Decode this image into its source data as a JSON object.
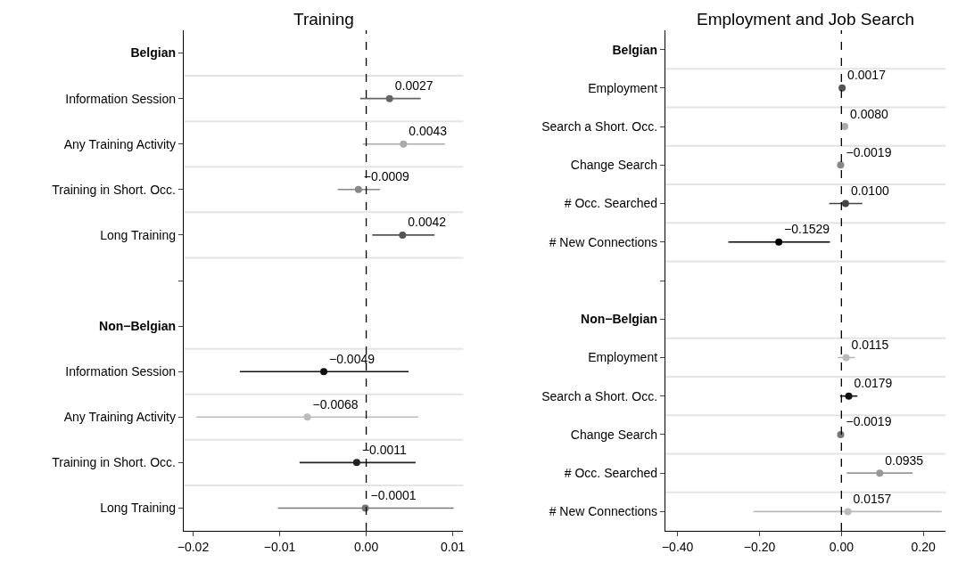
{
  "chart_data": [
    {
      "type": "scatter",
      "orientation": "horizontal",
      "title": "Training",
      "categories": [
        "Belgian",
        "Information Session",
        "Any Training Activity",
        "Training in Short. Occ.",
        "Long Training",
        null,
        "Non−Belgian",
        "Information Session",
        "Any Training Activity",
        "Training in Short. Occ.",
        "Long Training"
      ],
      "values": [
        null,
        0.0027,
        0.0043,
        -0.0009,
        0.0042,
        null,
        null,
        -0.0049,
        -0.0068,
        -0.0011,
        -0.0001
      ],
      "value_labels": [
        null,
        "0.0027",
        "0.0043",
        "−0.0009",
        "0.0042",
        null,
        null,
        "−0.0049",
        "−0.0068",
        "−0.0011",
        "−0.0001"
      ],
      "colors": [
        "#000000",
        "#666666",
        "#aaaaaa",
        "#888888",
        "#555555",
        "#000000",
        "#000000",
        "#111111",
        "#bbbbbb",
        "#222222",
        "#777777"
      ],
      "errors": [
        null,
        [
          -0.0007,
          0.0063
        ],
        [
          -0.0004,
          0.0091
        ],
        [
          -0.0033,
          0.0016
        ],
        [
          0.0007,
          0.0079
        ],
        null,
        null,
        [
          -0.0146,
          0.0049
        ],
        [
          -0.0196,
          0.006
        ],
        [
          -0.0077,
          0.0057
        ],
        [
          -0.0102,
          0.0101
        ]
      ],
      "xlim": [
        -0.0211,
        0.0112
      ],
      "xticks": [
        {
          "value": -0.02,
          "label": "−0.02"
        },
        {
          "value": -0.01,
          "label": "−0.01"
        },
        {
          "value": 0,
          "label": "0.00"
        },
        {
          "value": 0.01,
          "label": "0.01"
        }
      ],
      "ref_lines": [
        {
          "axis": "x",
          "value": 0,
          "line_style": "dashed",
          "color": "#000000"
        }
      ],
      "grid": "y",
      "marker": "circle"
    },
    {
      "type": "scatter",
      "orientation": "horizontal",
      "title": "Employment and Job Search",
      "categories": [
        "Belgian",
        "Employment",
        "Search a Short. Occ.",
        "Change Search",
        "# Occ. Searched",
        "# New Connections",
        null,
        "Non−Belgian",
        "Employment",
        "Search a Short. Occ.",
        "Change Search",
        "# Occ. Searched",
        "# New Connections"
      ],
      "values": [
        null,
        0.0017,
        0.008,
        -0.0019,
        0.01,
        -0.1529,
        null,
        null,
        0.0115,
        0.0179,
        -0.0019,
        0.0935,
        0.0157
      ],
      "value_labels": [
        null,
        "0.0017",
        "0.0080",
        "−0.0019",
        "0.0100",
        "−0.1529",
        null,
        null,
        "0.0115",
        "0.0179",
        "−0.0019",
        "0.0935",
        "0.0157"
      ],
      "colors": [
        "#000000",
        "#555555",
        "#aaaaaa",
        "#888888",
        "#444444",
        "#000000",
        "#000000",
        "#000000",
        "#bbbbbb",
        "#111111",
        "#777777",
        "#999999",
        "#bbbbbb"
      ],
      "errors": [
        null,
        null,
        null,
        null,
        [
          -0.03,
          0.051
        ],
        [
          -0.276,
          -0.028
        ],
        null,
        null,
        [
          -0.009,
          0.033
        ],
        [
          -0.003,
          0.039
        ],
        null,
        [
          0.013,
          0.174
        ],
        [
          -0.215,
          0.245
        ]
      ],
      "xlim": [
        -0.43,
        0.255
      ],
      "xticks": [
        {
          "value": -0.4,
          "label": "−0.40"
        },
        {
          "value": -0.2,
          "label": "−0.20"
        },
        {
          "value": 0,
          "label": "0.00"
        },
        {
          "value": 0.2,
          "label": "0.20"
        }
      ],
      "ref_lines": [
        {
          "axis": "x",
          "value": 0,
          "line_style": "dashed",
          "color": "#000000"
        }
      ],
      "grid": "y",
      "marker": "circle"
    }
  ]
}
